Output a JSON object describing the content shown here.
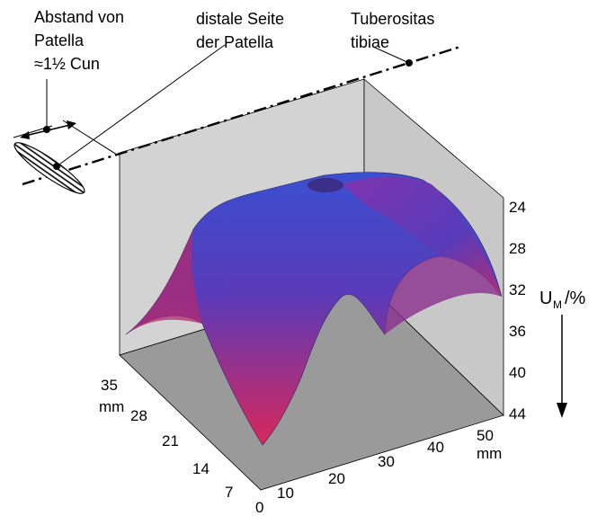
{
  "annotations": {
    "distance": [
      "Abstand von",
      "Patella",
      "≈1½ Cun"
    ],
    "distal_side": [
      "distale Seite",
      "der Patella"
    ],
    "tuberositas": [
      "Tuberositas",
      "tibiae"
    ]
  },
  "z_axis": {
    "ticks": [
      "24",
      "28",
      "32",
      "36",
      "40",
      "44"
    ],
    "label": {
      "main": "U",
      "sub": "M",
      "unit": "/%"
    }
  },
  "y_axis": {
    "ticks": [
      "35",
      "28",
      "21",
      "14",
      "7",
      "0"
    ],
    "unit": "mm"
  },
  "x_axis": {
    "ticks": [
      "10",
      "20",
      "30",
      "40",
      "50"
    ],
    "unit": "mm"
  }
}
